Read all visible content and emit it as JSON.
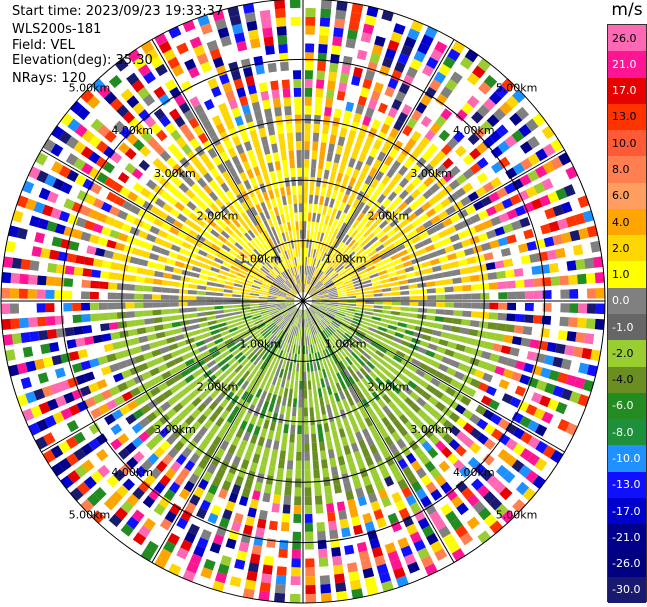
{
  "header": {
    "start_time": "Start time: 2023/09/23 19:33:37",
    "instrument": "WLS200s-181",
    "field": "Field: VEL",
    "elevation": "Elevation(deg): 35.30",
    "nrays": "NRays: 120"
  },
  "colorbar": {
    "unit": "m/s",
    "labels": [
      "26.0",
      "21.0",
      "17.0",
      "13.0",
      "10.0",
      "8.0",
      "6.0",
      "4.0",
      "2.0",
      "1.0",
      "0.0",
      "-1.0",
      "-2.0",
      "-4.0",
      "-6.0",
      "-8.0",
      "-10.0",
      "-13.0",
      "-17.0",
      "-21.0",
      "-26.0",
      "-30.0"
    ],
    "colors": [
      "#ff69b4",
      "#ff1493",
      "#e60000",
      "#ff3300",
      "#ff5a36",
      "#ff7f50",
      "#ff9e5e",
      "#ffa500",
      "#ffd700",
      "#ffff00",
      "#808080",
      "#666666",
      "#9acd32",
      "#6b8e23",
      "#228b22",
      "#1e8f3a",
      "#1e90ff",
      "#1010ff",
      "#0000cd",
      "#00008b",
      "#000080",
      "#191970"
    ]
  },
  "chart_data": {
    "type": "ppi",
    "field": "VEL",
    "unit": "m/s",
    "nrays": 120,
    "elevation_deg": 35.3,
    "range_ring_labels": [
      "1.00km",
      "2.00km",
      "3.00km",
      "4.00km",
      "5.00km"
    ],
    "range_rings_km": [
      1.0,
      2.0,
      3.0,
      4.0,
      5.0
    ],
    "spokes_deg": [
      0,
      30,
      60,
      90,
      120,
      150,
      180,
      210,
      240,
      270,
      300,
      330
    ],
    "pattern": {
      "north_half_inner": "positive 1-4 m/s (yellow/orange)",
      "south_half_inner": "negative -1 to -6 m/s (green)",
      "outer_range": "noisy, all values"
    },
    "grid": true
  }
}
